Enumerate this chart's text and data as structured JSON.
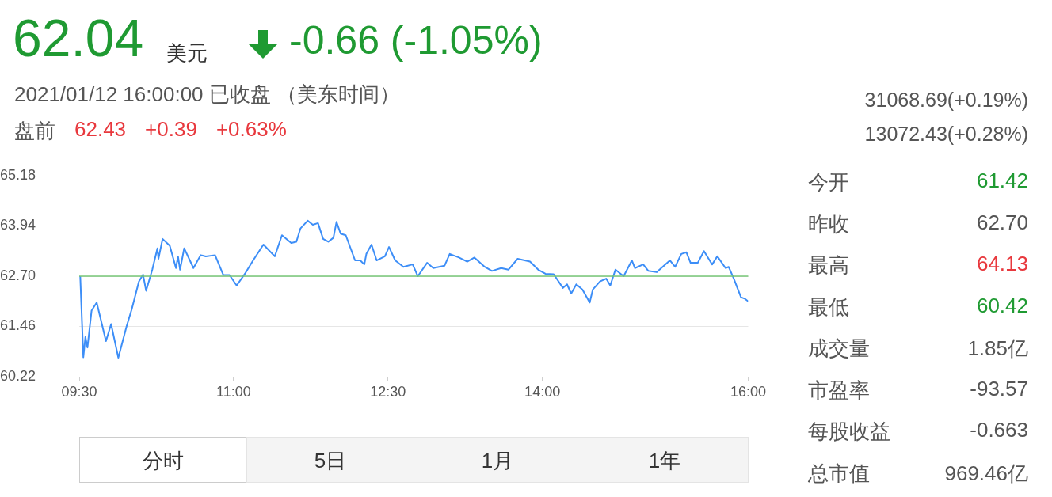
{
  "chart_data": {
    "type": "line",
    "title": "62.04",
    "subtitle": "2021/01/12 16:00:00  已收盘 （美东时间）",
    "annotations": [
      "美元",
      "-0.66 (-1.05%)",
      "盘前 62.43 +0.39 +0.63%",
      "31068.69(+0.19%)",
      "13072.43(+0.28%)",
      "今开 61.42",
      "昨收 62.70",
      "最高 64.13",
      "最低 60.42",
      "成交量 1.85亿",
      "市盈率 -93.57",
      "每股收益 -0.663",
      "总市值 969.46亿",
      "分时",
      "5日",
      "1月",
      "1年"
    ],
    "x": [
      9.51,
      9.54,
      9.56,
      9.58,
      9.62,
      9.67,
      9.76,
      9.81,
      9.88,
      9.96,
      10.01,
      10.08,
      10.12,
      10.15,
      10.21,
      10.26,
      10.27,
      10.31,
      10.38,
      10.44,
      10.46,
      10.48,
      10.52,
      10.61,
      10.68,
      10.73,
      10.82,
      10.9,
      10.96,
      11.03,
      11.11,
      11.19,
      11.29,
      11.4,
      11.47,
      11.56,
      11.61,
      11.65,
      11.72,
      11.77,
      11.82,
      11.87,
      11.92,
      11.97,
      12.0,
      12.04,
      12.09,
      12.18,
      12.23,
      12.27,
      12.29,
      12.34,
      12.39,
      12.47,
      12.51,
      12.57,
      12.65,
      12.74,
      12.79,
      12.88,
      12.94,
      13.05,
      13.1,
      13.19,
      13.27,
      13.34,
      13.44,
      13.51,
      13.6,
      13.67,
      13.76,
      13.88,
      13.96,
      14.03,
      14.11,
      14.2,
      14.24,
      14.28,
      14.33,
      14.39,
      14.46,
      14.49,
      14.56,
      14.62,
      14.66,
      14.71,
      14.79,
      14.87,
      14.9,
      14.98,
      15.03,
      15.11,
      15.24,
      15.29,
      15.35,
      15.4,
      15.44,
      15.51,
      15.57,
      15.65,
      15.7,
      15.78,
      15.81,
      15.86,
      15.93,
      15.97,
      16.0
    ],
    "values": [
      62.7,
      60.7,
      61.2,
      60.94,
      61.85,
      62.05,
      61.1,
      61.52,
      60.69,
      61.46,
      61.88,
      62.57,
      62.74,
      62.34,
      62.86,
      63.39,
      63.13,
      63.62,
      63.45,
      62.9,
      63.19,
      62.86,
      63.39,
      62.9,
      63.22,
      63.19,
      63.22,
      62.73,
      62.73,
      62.47,
      62.76,
      63.09,
      63.48,
      63.19,
      63.71,
      63.52,
      63.55,
      63.88,
      64.07,
      63.97,
      64.01,
      63.62,
      63.55,
      63.65,
      64.04,
      63.75,
      63.71,
      63.09,
      63.09,
      62.99,
      63.25,
      63.48,
      63.09,
      63.19,
      63.42,
      63.09,
      62.93,
      62.99,
      62.7,
      63.03,
      62.9,
      62.96,
      63.25,
      63.16,
      63.06,
      63.16,
      62.93,
      62.83,
      62.9,
      62.86,
      63.13,
      63.06,
      62.86,
      62.76,
      62.75,
      62.41,
      62.5,
      62.27,
      62.5,
      62.37,
      62.05,
      62.37,
      62.57,
      62.64,
      62.47,
      62.86,
      62.7,
      63.09,
      62.9,
      62.99,
      62.83,
      62.8,
      63.09,
      62.93,
      63.25,
      63.29,
      63.03,
      63.03,
      63.32,
      62.99,
      63.19,
      62.9,
      62.93,
      62.64,
      62.18,
      62.14,
      62.08
    ],
    "color": "#3d8ef7",
    "xlim": [
      9.5,
      16
    ],
    "xticks": [
      {
        "value": 9.5,
        "label": "09:30"
      },
      {
        "value": 11,
        "label": "11:00"
      },
      {
        "value": 12.5,
        "label": "12:30"
      },
      {
        "value": 14,
        "label": "14:00"
      },
      {
        "value": 16,
        "label": "16:00"
      }
    ],
    "ylim": [
      60.22,
      65.18
    ],
    "yticks": [
      60.22,
      61.46,
      {
        "value": 62.7,
        "label": "62.70"
      },
      63.94,
      65.18
    ],
    "grid": "y",
    "ref_lines": [
      {
        "axis": "y",
        "value": 62.7,
        "color": "#77c777"
      }
    ]
  }
}
